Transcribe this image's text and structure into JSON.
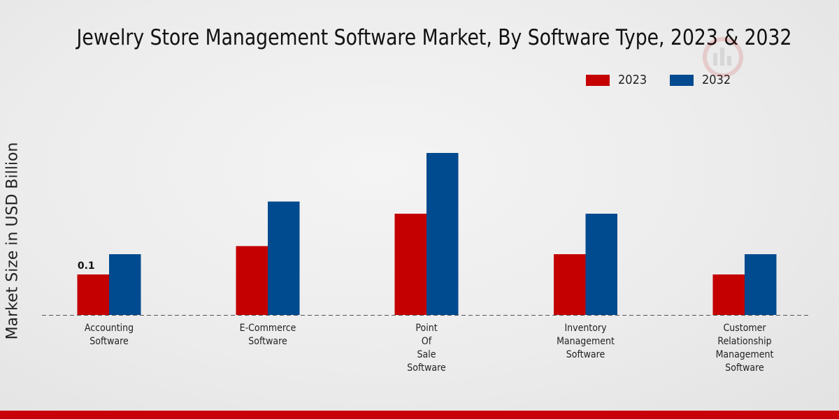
{
  "chart_data": {
    "type": "bar",
    "title": "Jewelry Store Management Software Market, By Software Type, 2023 & 2032",
    "xlabel": "",
    "ylabel": "Market Size in USD Billion",
    "categories": [
      [
        "Accounting",
        "Software"
      ],
      [
        "E-Commerce",
        "Software"
      ],
      [
        "Point",
        "Of",
        "Sale",
        "Software"
      ],
      [
        "Inventory",
        "Management",
        "Software"
      ],
      [
        "Customer",
        "Relationship",
        "Management",
        "Software"
      ]
    ],
    "series": [
      {
        "name": "2023",
        "color": "#c40000",
        "values": [
          0.1,
          0.17,
          0.25,
          0.15,
          0.1
        ]
      },
      {
        "name": "2032",
        "color": "#004a8f",
        "values": [
          0.15,
          0.28,
          0.4,
          0.25,
          0.15
        ]
      }
    ],
    "data_labels": [
      {
        "series": 0,
        "index": 0,
        "text": "0.1"
      }
    ],
    "ylim": [
      0,
      0.6
    ],
    "legend": "top-right",
    "grid": false
  },
  "legend": {
    "items": [
      "2023",
      "2032"
    ]
  }
}
